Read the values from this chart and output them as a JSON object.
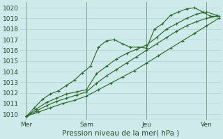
{
  "xlabel": "Pression niveau de la mer( hPa )",
  "bg_color": "#ceeaea",
  "grid_color": "#b0c8c8",
  "line_color": "#2d6b2d",
  "ylim": [
    1009.5,
    1020.5
  ],
  "yticks": [
    1010,
    1011,
    1012,
    1013,
    1014,
    1015,
    1016,
    1017,
    1018,
    1019,
    1020
  ],
  "xlim": [
    -0.3,
    9.7
  ],
  "day_labels": [
    "Mer",
    "Sam",
    "Jeu",
    "Ven"
  ],
  "day_positions": [
    0.0,
    3.0,
    6.0,
    9.0
  ],
  "series": [
    {
      "x": [
        0.0,
        0.4,
        0.8,
        1.2,
        1.6,
        2.0,
        2.4,
        2.8,
        3.2,
        3.6,
        4.0,
        4.4,
        4.8,
        5.2,
        5.6,
        6.0,
        6.4,
        6.8,
        7.2,
        7.6,
        8.0,
        8.4,
        8.8,
        9.2,
        9.6
      ],
      "y": [
        1009.8,
        1010.6,
        1011.4,
        1011.9,
        1012.2,
        1012.7,
        1013.2,
        1013.9,
        1014.5,
        1016.3,
        1016.9,
        1017.0,
        1016.6,
        1016.3,
        1016.3,
        1016.2,
        1018.0,
        1018.5,
        1019.3,
        1019.6,
        1019.9,
        1020.0,
        1019.6,
        1019.2,
        1019.2
      ]
    },
    {
      "x": [
        0.0,
        0.5,
        1.0,
        1.5,
        2.0,
        2.5,
        3.0,
        3.5,
        4.0,
        4.5,
        5.0,
        5.5,
        6.0,
        6.5,
        7.0,
        7.5,
        8.0,
        8.5,
        9.0,
        9.5
      ],
      "y": [
        1009.8,
        1010.5,
        1011.1,
        1011.5,
        1011.9,
        1012.1,
        1012.3,
        1013.8,
        1014.5,
        1015.2,
        1015.7,
        1016.1,
        1016.5,
        1017.2,
        1018.0,
        1018.5,
        1019.0,
        1019.4,
        1019.6,
        1019.3
      ]
    },
    {
      "x": [
        0.0,
        0.5,
        1.0,
        1.5,
        2.0,
        2.5,
        3.0,
        3.5,
        4.0,
        4.5,
        5.0,
        5.5,
        6.0,
        6.5,
        7.0,
        7.5,
        8.0,
        8.5,
        9.0,
        9.5
      ],
      "y": [
        1009.8,
        1010.3,
        1010.8,
        1011.2,
        1011.5,
        1011.8,
        1012.1,
        1012.9,
        1013.6,
        1014.2,
        1014.8,
        1015.4,
        1016.0,
        1016.6,
        1017.2,
        1017.8,
        1018.3,
        1018.7,
        1019.0,
        1019.2
      ]
    },
    {
      "x": [
        0.0,
        0.6,
        1.2,
        1.8,
        2.4,
        3.0,
        3.6,
        4.2,
        4.8,
        5.4,
        6.0,
        6.6,
        7.2,
        7.8,
        8.4,
        9.0,
        9.6
      ],
      "y": [
        1009.8,
        1010.2,
        1010.6,
        1011.0,
        1011.3,
        1011.7,
        1012.3,
        1012.9,
        1013.5,
        1014.1,
        1014.8,
        1015.5,
        1016.2,
        1016.9,
        1017.6,
        1018.3,
        1019.0
      ]
    }
  ]
}
